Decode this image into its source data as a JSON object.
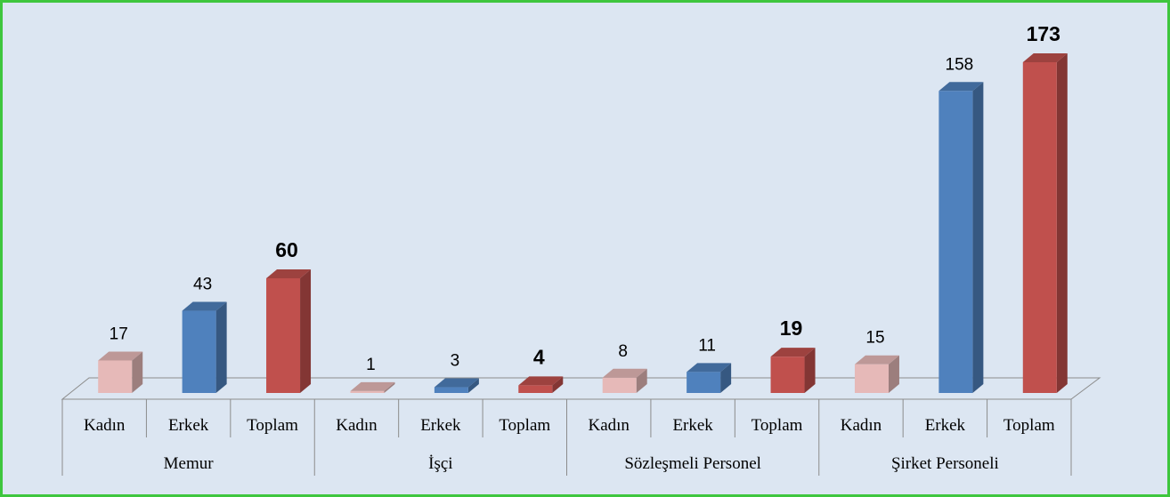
{
  "chart_data": {
    "type": "bar3d",
    "groups": [
      "Memur",
      "İşçi",
      "Sözleşmeli Personel",
      "Şirket Personeli"
    ],
    "series": [
      {
        "name": "Kadın",
        "color": "#e6b9b8",
        "values": [
          17,
          1,
          8,
          15
        ]
      },
      {
        "name": "Erkek",
        "color": "#4f81bd",
        "values": [
          43,
          3,
          11,
          158
        ]
      },
      {
        "name": "Toplam",
        "color": "#c0504d",
        "values": [
          60,
          4,
          19,
          173
        ],
        "bold": true
      }
    ]
  }
}
